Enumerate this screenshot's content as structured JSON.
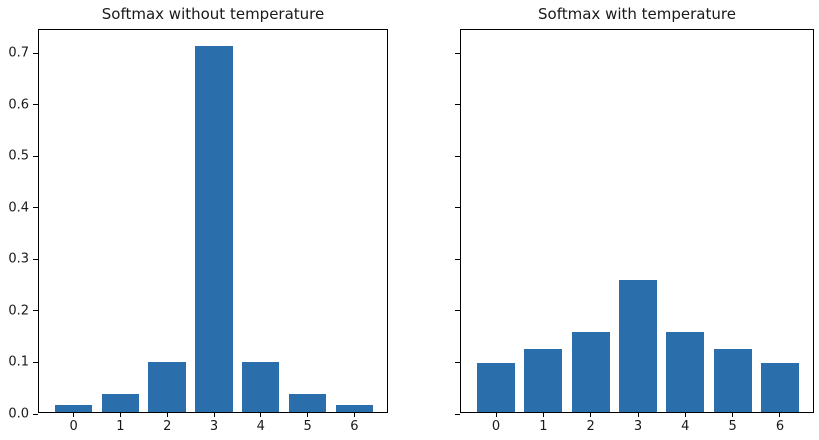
{
  "figure": {
    "background": "#ffffff",
    "bar_color": "#2a6fac",
    "axis_color": "#000000"
  },
  "chart_data": [
    {
      "type": "bar",
      "title": "Softmax without temperature",
      "categories": [
        "0",
        "1",
        "2",
        "3",
        "4",
        "5",
        "6"
      ],
      "values": [
        0.013,
        0.0354,
        0.0962,
        0.7108,
        0.0962,
        0.0354,
        0.013
      ],
      "xlim": [
        -0.74,
        6.74
      ],
      "ylim": [
        0,
        0.745
      ],
      "bar_width": 0.8,
      "yticks": [
        0.0,
        0.1,
        0.2,
        0.3,
        0.4,
        0.5,
        0.6,
        0.7
      ],
      "ytick_labels": [
        "0.0",
        "0.1",
        "0.2",
        "0.3",
        "0.4",
        "0.5",
        "0.6",
        "0.7"
      ],
      "show_ytick_labels": true,
      "grid": false,
      "legend": null
    },
    {
      "type": "bar",
      "title": "Softmax with temperature",
      "categories": [
        "0",
        "1",
        "2",
        "3",
        "4",
        "5",
        "6"
      ],
      "values": [
        0.0945,
        0.1213,
        0.1558,
        0.2568,
        0.1558,
        0.1213,
        0.0945
      ],
      "xlim": [
        -0.74,
        6.74
      ],
      "ylim": [
        0,
        0.745
      ],
      "bar_width": 0.8,
      "yticks": [
        0.0,
        0.1,
        0.2,
        0.3,
        0.4,
        0.5,
        0.6,
        0.7
      ],
      "ytick_labels": [],
      "show_ytick_labels": false,
      "grid": false,
      "legend": null
    }
  ]
}
